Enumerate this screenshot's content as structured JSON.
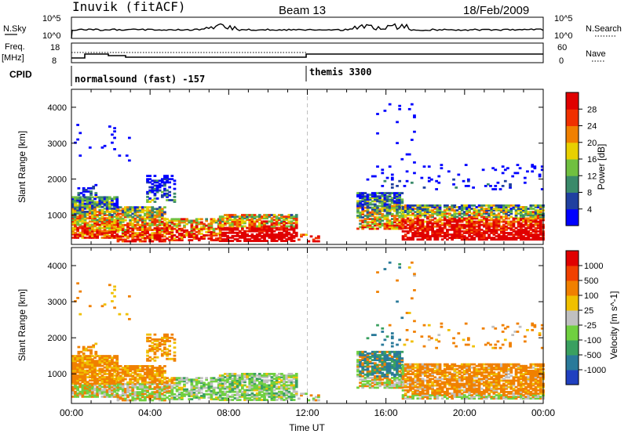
{
  "header": {
    "station": "Inuvik (fitACF)",
    "beam": "Beam 13",
    "date": "18/Feb/2009"
  },
  "top_panels": {
    "nsky_label": "N.Sky",
    "nsky_ticks": [
      "10^5",
      "10^0"
    ],
    "nsearch_label": "N.Search",
    "nsearch_ticks": [
      "10^5",
      "10^0"
    ],
    "freq_label_1": "Freq.",
    "freq_label_2": "[MHz]",
    "freq_ticks": [
      "18",
      "8"
    ],
    "nave_label": "Nave",
    "nave_ticks": [
      "60",
      "0"
    ],
    "cpid_label": "CPID",
    "cpid_1": "normalsound (fast) -157",
    "cpid_2": "themis 3300"
  },
  "chart_data": [
    {
      "type": "heatmap",
      "quantity": "Power",
      "ylabel": "Slant Range [km]",
      "ylim": [
        180,
        4500
      ],
      "yticks": [
        "1000",
        "2000",
        "3000",
        "4000"
      ],
      "xlim": [
        0,
        24
      ],
      "colorbar_label": "Power [dB]",
      "colorbar_ticks": [
        "4",
        "8",
        "12",
        "16",
        "20",
        "24",
        "28"
      ],
      "colorbar_colors": [
        "#0000ff",
        "#2040a0",
        "#3a8a6a",
        "#70c040",
        "#e8d000",
        "#f08000",
        "#f03000",
        "#e00000"
      ]
    },
    {
      "type": "heatmap",
      "quantity": "Velocity",
      "ylabel": "Slant Range [km]",
      "ylim": [
        180,
        4500
      ],
      "yticks": [
        "1000",
        "2000",
        "3000",
        "4000"
      ],
      "xlim": [
        0,
        24
      ],
      "xticks": [
        "00:00",
        "04:00",
        "08:00",
        "12:00",
        "16:00",
        "20:00",
        "00:00"
      ],
      "xlabel": "Time UT",
      "colorbar_label": "Velocity [m s^-1]",
      "colorbar_ticks": [
        "1000",
        "500",
        "100",
        "25",
        "-25",
        "-100",
        "-500",
        "-1000"
      ],
      "colorbar_colors": [
        "#2040c0",
        "#2a7a9a",
        "#3aa060",
        "#70d040",
        "#c0c0c0",
        "#f0c000",
        "#f08000",
        "#f04000",
        "#e00000"
      ]
    }
  ],
  "colors": {
    "axis": "#000000",
    "marker_line": "#c0c0c0"
  }
}
